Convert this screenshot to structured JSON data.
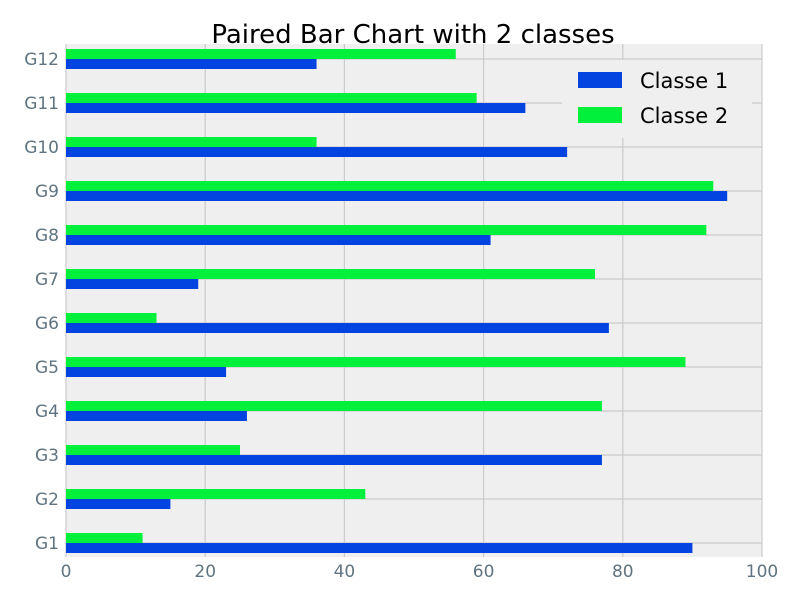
{
  "chart_data": {
    "type": "bar",
    "orientation": "horizontal",
    "title": "Paired Bar Chart with 2 classes",
    "xlabel": "",
    "ylabel": "",
    "categories": [
      "G1",
      "G2",
      "G3",
      "G4",
      "G5",
      "G6",
      "G7",
      "G8",
      "G9",
      "G10",
      "G11",
      "G12"
    ],
    "series": [
      {
        "name": "Classe 1",
        "color": "#0343df",
        "values": [
          90,
          15,
          77,
          26,
          23,
          78,
          19,
          61,
          95,
          72,
          66,
          36
        ]
      },
      {
        "name": "Classe 2",
        "color": "#00f03c",
        "values": [
          11,
          43,
          25,
          77,
          89,
          13,
          76,
          92,
          93,
          36,
          59,
          56
        ]
      }
    ],
    "xlim": [
      0,
      100
    ],
    "xticks": [
      0,
      20,
      40,
      60,
      80,
      100
    ],
    "grid": true,
    "legend_position": "top-right",
    "background": "#efefef"
  }
}
